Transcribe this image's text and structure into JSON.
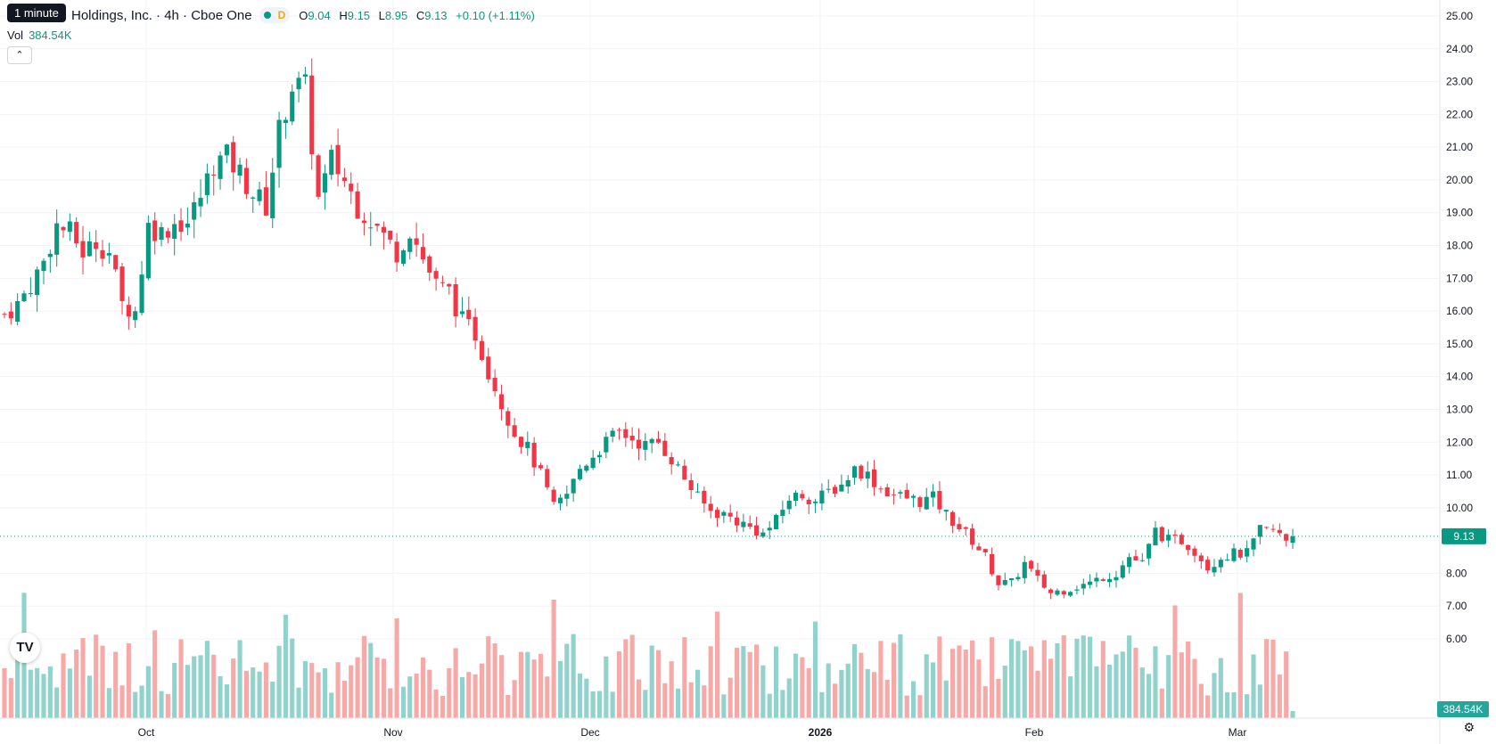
{
  "tooltip": "1 minute",
  "header": {
    "title": "Holdings, Inc. · 4h · Cboe One",
    "d_badge": "D",
    "open_label": "O",
    "open": "9.04",
    "high_label": "H",
    "high": "9.15",
    "low_label": "L",
    "low": "8.95",
    "close_label": "C",
    "close": "9.13",
    "change": "+0.10 (+1.11%)"
  },
  "volume": {
    "label": "Vol",
    "value": "384.54K"
  },
  "price_tag": "9.13",
  "volume_tag": "384.54K",
  "logo_text": "TV",
  "icons": {
    "collapse": "chevron-up-icon",
    "settings": "gear-icon",
    "logo": "tradingview-logo"
  },
  "colors": {
    "up": "#089981",
    "down": "#F23645",
    "up_vol": "#92D2CC",
    "down_vol": "#F7A9A7",
    "grid": "#F0F3FA"
  },
  "chart_data": {
    "type": "candlestick",
    "interval": "4h",
    "x_ticks": [
      "Oct",
      "Nov",
      "Dec",
      "2026",
      "Feb",
      "Mar"
    ],
    "y_ticks": [
      "25.00",
      "24.00",
      "23.00",
      "22.00",
      "21.00",
      "20.00",
      "19.00",
      "18.00",
      "17.00",
      "16.00",
      "15.00",
      "14.00",
      "13.00",
      "12.00",
      "11.00",
      "10.00",
      "8.00",
      "7.00",
      "6.00"
    ],
    "ylim": [
      5.3,
      25.2
    ],
    "last_price": 9.13,
    "last_volume": "384.54K",
    "close_path": [
      [
        0,
        15.9
      ],
      [
        2,
        16.2
      ],
      [
        4,
        16.8
      ],
      [
        6,
        17.5
      ],
      [
        8,
        18.6
      ],
      [
        10,
        18.4
      ],
      [
        12,
        17.8
      ],
      [
        14,
        18.1
      ],
      [
        16,
        17.8
      ],
      [
        18,
        16.2
      ],
      [
        20,
        16.0
      ],
      [
        22,
        18.6
      ],
      [
        24,
        18.4
      ],
      [
        26,
        18.7
      ],
      [
        28,
        18.7
      ],
      [
        30,
        19.5
      ],
      [
        32,
        20.5
      ],
      [
        34,
        20.7
      ],
      [
        36,
        20.2
      ],
      [
        38,
        19.6
      ],
      [
        40,
        19.2
      ],
      [
        42,
        21.5
      ],
      [
        44,
        22.9
      ],
      [
        46,
        22.8
      ],
      [
        48,
        19.4
      ],
      [
        50,
        20.6
      ],
      [
        52,
        20.0
      ],
      [
        54,
        19.2
      ],
      [
        56,
        18.8
      ],
      [
        58,
        18.3
      ],
      [
        60,
        17.8
      ],
      [
        62,
        18.5
      ],
      [
        64,
        17.6
      ],
      [
        66,
        16.8
      ],
      [
        68,
        16.6
      ],
      [
        70,
        15.7
      ],
      [
        72,
        15.3
      ],
      [
        74,
        14.2
      ],
      [
        76,
        13.2
      ],
      [
        78,
        12.3
      ],
      [
        80,
        11.8
      ],
      [
        82,
        11.0
      ],
      [
        84,
        10.0
      ],
      [
        86,
        10.4
      ],
      [
        88,
        11.2
      ],
      [
        90,
        11.6
      ],
      [
        92,
        12.0
      ],
      [
        94,
        12.3
      ],
      [
        96,
        12.1
      ],
      [
        98,
        11.9
      ],
      [
        100,
        12.0
      ],
      [
        102,
        11.5
      ],
      [
        104,
        10.9
      ],
      [
        106,
        10.3
      ],
      [
        108,
        9.9
      ],
      [
        110,
        9.8
      ],
      [
        112,
        9.6
      ],
      [
        114,
        9.4
      ],
      [
        116,
        9.2
      ],
      [
        118,
        9.6
      ],
      [
        120,
        10.3
      ],
      [
        122,
        10.4
      ],
      [
        124,
        10.2
      ],
      [
        126,
        10.5
      ],
      [
        128,
        10.7
      ],
      [
        130,
        11.2
      ],
      [
        132,
        11.0
      ],
      [
        134,
        10.6
      ],
      [
        136,
        10.4
      ],
      [
        138,
        10.3
      ],
      [
        140,
        10.2
      ],
      [
        142,
        10.3
      ],
      [
        144,
        9.8
      ],
      [
        146,
        9.4
      ],
      [
        148,
        9.0
      ],
      [
        150,
        8.5
      ],
      [
        152,
        7.7
      ],
      [
        154,
        7.7
      ],
      [
        156,
        8.3
      ],
      [
        158,
        7.8
      ],
      [
        160,
        7.4
      ],
      [
        162,
        7.5
      ],
      [
        164,
        7.6
      ],
      [
        166,
        7.7
      ],
      [
        168,
        7.9
      ],
      [
        170,
        8.0
      ],
      [
        172,
        8.5
      ],
      [
        174,
        8.3
      ],
      [
        176,
        9.3
      ],
      [
        178,
        9.0
      ],
      [
        180,
        9.0
      ],
      [
        182,
        8.7
      ],
      [
        184,
        8.2
      ],
      [
        186,
        8.5
      ],
      [
        188,
        8.6
      ],
      [
        190,
        8.6
      ],
      [
        192,
        9.3
      ],
      [
        194,
        9.3
      ],
      [
        196,
        9.0
      ],
      [
        197,
        9.13
      ]
    ],
    "bar_count": 198
  }
}
